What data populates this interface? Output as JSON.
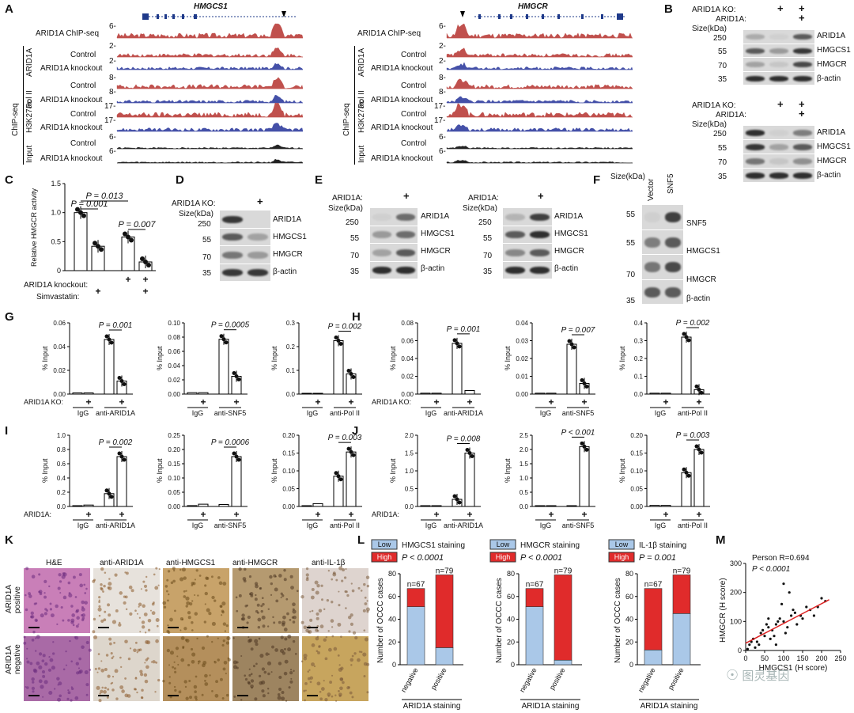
{
  "panel_letters": [
    "A",
    "B",
    "C",
    "D",
    "E",
    "F",
    "G",
    "H",
    "I",
    "J",
    "K",
    "L",
    "M"
  ],
  "panelA": {
    "genes": [
      "HMGCS1",
      "HMGCR"
    ],
    "track_rows": [
      "ARID1A ChIP-seq",
      "Control",
      "ARID1A knockout",
      "Control",
      "ARID1A knockout",
      "Control",
      "ARID1A knockout",
      "Control",
      "ARID1A knockout"
    ],
    "group_labels": [
      "ARID1A",
      "Pol II",
      "H3K27ac",
      "Input",
      "ChIP-seq"
    ],
    "scales_left": [
      "6-",
      "2-",
      "2-",
      "8-",
      "8-",
      "17-",
      "17-",
      "6-",
      "6-"
    ],
    "scales_right": [
      "6-",
      "2-",
      "2-",
      "8-",
      "8-",
      "17-",
      "17-",
      "6-",
      "6-"
    ]
  },
  "panelB": {
    "row_labels": [
      "ARID1A KO:",
      "ARID1A:",
      "Size(kDa)"
    ],
    "sizes": [
      "250",
      "55",
      "70",
      "35"
    ],
    "proteins": [
      "ARID1A",
      "HMGCS1",
      "HMGCR",
      "β-actin"
    ]
  },
  "panelC": {
    "ylabel": "Relative HMGCR activity",
    "yticks": [
      "0",
      "0.5",
      "1.0",
      "1.5"
    ],
    "pvalues": [
      "P = 0.013",
      "P = 0.001",
      "P = 0.007"
    ],
    "row1": "ARID1A knockout:",
    "row2": "Simvastatin:",
    "plus": "+"
  },
  "panelD": {
    "row": "ARID1A KO:",
    "size": "Size(kDa)",
    "sizes": [
      "250",
      "55",
      "70",
      "35"
    ],
    "proteins": [
      "ARID1A",
      "HMGCS1",
      "HMGCR",
      "β-actin"
    ]
  },
  "panelE": {
    "row": "ARID1A:",
    "size": "Size(kDa)",
    "sizes": [
      "250",
      "55",
      "70",
      "35"
    ],
    "proteins": [
      "ARID1A",
      "HMGCS1",
      "HMGCR",
      "β-actin"
    ]
  },
  "panelF": {
    "size": "Size(kDa)",
    "lanes": [
      "Vector",
      "SNF5"
    ],
    "sizes": [
      "55",
      "55",
      "70",
      "35"
    ],
    "proteins": [
      "SNF5",
      "HMGCS1",
      "HMGCR",
      "β-actin"
    ]
  },
  "barpanels": {
    "ylabel": "% Input",
    "ko_label": "ARID1A KO:",
    "oe_label": "ARID1A:",
    "igg": "IgG",
    "G": [
      {
        "p": "P = 0.001",
        "ab": "anti-ARID1A",
        "yticks": [
          "0.00",
          "0.02",
          "0.04",
          "0.06"
        ]
      },
      {
        "p": "P = 0.0005",
        "ab": "anti-SNF5",
        "yticks": [
          "0.00",
          "0.02",
          "0.04",
          "0.06",
          "0.08",
          "0.10"
        ]
      },
      {
        "p": "P = 0.002",
        "ab": "anti-Pol II",
        "yticks": [
          "0.0",
          "0.1",
          "0.2",
          "0.3"
        ]
      }
    ],
    "H": [
      {
        "p": "P = 0.001",
        "ab": "anti-ARID1A",
        "yticks": [
          "0.00",
          "0.02",
          "0.04",
          "0.06",
          "0.08"
        ]
      },
      {
        "p": "P = 0.007",
        "ab": "anti-SNF5",
        "yticks": [
          "0.00",
          "0.01",
          "0.02",
          "0.03",
          "0.04"
        ]
      },
      {
        "p": "P = 0.002",
        "ab": "anti-Pol II",
        "yticks": [
          "0.0",
          "0.1",
          "0.2",
          "0.3",
          "0.4"
        ]
      }
    ],
    "I": [
      {
        "p": "P = 0.002",
        "ab": "anti-ARID1A",
        "yticks": [
          "0.0",
          "0.2",
          "0.4",
          "0.6",
          "0.8",
          "1.0"
        ]
      },
      {
        "p": "P = 0.0006",
        "ab": "anti-SNF5",
        "yticks": [
          "0.00",
          "0.05",
          "0.10",
          "0.15",
          "0.20",
          "0.25"
        ]
      },
      {
        "p": "P = 0.003",
        "ab": "anti-Pol II",
        "yticks": [
          "0.00",
          "0.05",
          "0.10",
          "0.15",
          "0.20"
        ]
      }
    ],
    "J": [
      {
        "p": "P = 0.008",
        "ab": "anti-ARID1A",
        "yticks": [
          "0.0",
          "0.5",
          "1.0",
          "1.5",
          "2.0"
        ]
      },
      {
        "p": "P < 0.001",
        "ab": "anti-SNF5",
        "yticks": [
          "0.0",
          "0.5",
          "1.0",
          "1.5",
          "2.0",
          "2.5"
        ]
      },
      {
        "p": "P = 0.003",
        "ab": "anti-Pol II",
        "yticks": [
          "0.00",
          "0.05",
          "0.10",
          "0.15",
          "0.20"
        ]
      }
    ]
  },
  "panelK": {
    "columns": [
      "H&E",
      "anti-ARID1A",
      "anti-HMGCS1",
      "anti-HMGCR",
      "anti-IL-1β"
    ],
    "rows": [
      "ARID1A positive",
      "ARID1A negative"
    ]
  },
  "panelL": {
    "legend_low": "Low",
    "legend_high": "High",
    "ylabel": "Number of OCCC cases",
    "xlabel": "ARID1A staining",
    "cats": [
      "negative",
      "positive"
    ],
    "ns": [
      "n=67",
      "n=79"
    ],
    "yticks": [
      "0",
      "20",
      "40",
      "60",
      "80"
    ],
    "charts": [
      {
        "title": "HMGCS1 staining",
        "p": "P < 0.0001"
      },
      {
        "title": "HMGCR staining",
        "p": "P < 0.0001"
      },
      {
        "title": "IL-1β staining",
        "p": "P = 0.001"
      }
    ]
  },
  "panelM": {
    "r": "Person R=0.694",
    "p": "P < 0.0001",
    "ylabel": "HMGCR (H score)",
    "xlabel": "HMGCS1 (H score)",
    "ticks": [
      "0",
      "50",
      "100",
      "150",
      "200",
      "250"
    ],
    "yticks": [
      "0",
      "100",
      "200",
      "300"
    ]
  },
  "watermark": "图灵基因",
  "colors": {
    "low": "#aac8e8",
    "high": "#e02b2b",
    "red_track": "#c0504d",
    "blue_track": "#4450a8",
    "regression": "#d22"
  },
  "chart_data": [
    {
      "type": "bar",
      "panel": "C",
      "categories": [
        "Control",
        "Simvastatin",
        "ARID1A knockout",
        "ARID1A knockout + Simvastatin"
      ],
      "values": [
        1.0,
        0.42,
        0.58,
        0.15
      ],
      "ylabel": "Relative HMGCR activity",
      "ylim": [
        0,
        1.5
      ]
    },
    {
      "type": "bar",
      "panel": "G1",
      "categories": [
        "IgG",
        "IgG KO",
        "anti-ARID1A",
        "anti-ARID1A KO"
      ],
      "values": [
        0.001,
        0.001,
        0.046,
        0.011
      ],
      "ylim": [
        0,
        0.06
      ]
    },
    {
      "type": "bar",
      "panel": "G2",
      "categories": [
        "IgG",
        "IgG KO",
        "anti-SNF5",
        "anti-SNF5 KO"
      ],
      "values": [
        0.002,
        0.002,
        0.077,
        0.025
      ],
      "ylim": [
        0,
        0.1
      ]
    },
    {
      "type": "bar",
      "panel": "G3",
      "categories": [
        "IgG",
        "IgG KO",
        "anti-Pol II",
        "anti-Pol II KO"
      ],
      "values": [
        0.003,
        0.003,
        0.225,
        0.085
      ],
      "ylim": [
        0,
        0.3
      ]
    },
    {
      "type": "bar",
      "panel": "H1",
      "categories": [
        "IgG",
        "IgG KO",
        "anti-ARID1A",
        "anti-ARID1A KO"
      ],
      "values": [
        0.001,
        0.001,
        0.057,
        0.004
      ],
      "ylim": [
        0,
        0.08
      ]
    },
    {
      "type": "bar",
      "panel": "H2",
      "categories": [
        "IgG",
        "IgG KO",
        "anti-SNF5",
        "anti-SNF5 KO"
      ],
      "values": [
        0.0005,
        0.0005,
        0.028,
        0.006
      ],
      "ylim": [
        0,
        0.04
      ]
    },
    {
      "type": "bar",
      "panel": "H3",
      "categories": [
        "IgG",
        "IgG KO",
        "anti-Pol II",
        "anti-Pol II KO"
      ],
      "values": [
        0.005,
        0.005,
        0.32,
        0.025
      ],
      "ylim": [
        0,
        0.4
      ]
    },
    {
      "type": "bar",
      "panel": "I1",
      "categories": [
        "IgG",
        "IgG OE",
        "anti-ARID1A",
        "anti-ARID1A OE"
      ],
      "values": [
        0.01,
        0.02,
        0.18,
        0.7
      ],
      "ylim": [
        0,
        1.0
      ]
    },
    {
      "type": "bar",
      "panel": "I2",
      "categories": [
        "IgG",
        "IgG OE",
        "anti-SNF5",
        "anti-SNF5 OE"
      ],
      "values": [
        0.003,
        0.008,
        0.007,
        0.175
      ],
      "ylim": [
        0,
        0.25
      ]
    },
    {
      "type": "bar",
      "panel": "I3",
      "categories": [
        "IgG",
        "IgG OE",
        "anti-Pol II",
        "anti-Pol II OE"
      ],
      "values": [
        0.002,
        0.008,
        0.085,
        0.153
      ],
      "ylim": [
        0,
        0.2
      ]
    },
    {
      "type": "bar",
      "panel": "J1",
      "categories": [
        "IgG",
        "IgG OE",
        "anti-ARID1A",
        "anti-ARID1A OE"
      ],
      "values": [
        0.01,
        0.01,
        0.2,
        1.5
      ],
      "ylim": [
        0,
        2.0
      ]
    },
    {
      "type": "bar",
      "panel": "J2",
      "categories": [
        "IgG",
        "IgG OE",
        "anti-SNF5",
        "anti-SNF5 OE"
      ],
      "values": [
        0.01,
        0.01,
        0.01,
        2.1
      ],
      "ylim": [
        0,
        2.5
      ]
    },
    {
      "type": "bar",
      "panel": "J3",
      "categories": [
        "IgG",
        "IgG OE",
        "anti-Pol II",
        "anti-Pol II OE"
      ],
      "values": [
        0.003,
        0.003,
        0.095,
        0.16
      ],
      "ylim": [
        0,
        0.2
      ]
    },
    {
      "type": "bar",
      "panel": "L1",
      "categories": [
        "negative",
        "positive"
      ],
      "series": [
        {
          "name": "Low",
          "values": [
            51,
            15
          ]
        },
        {
          "name": "High",
          "values": [
            16,
            64
          ]
        }
      ],
      "ylim": [
        0,
        80
      ]
    },
    {
      "type": "bar",
      "panel": "L2",
      "categories": [
        "negative",
        "positive"
      ],
      "series": [
        {
          "name": "Low",
          "values": [
            51,
            4
          ]
        },
        {
          "name": "High",
          "values": [
            16,
            75
          ]
        }
      ],
      "ylim": [
        0,
        80
      ]
    },
    {
      "type": "bar",
      "panel": "L3",
      "categories": [
        "negative",
        "positive"
      ],
      "series": [
        {
          "name": "Low",
          "values": [
            13,
            45
          ]
        },
        {
          "name": "High",
          "values": [
            54,
            34
          ]
        }
      ],
      "ylim": [
        0,
        80
      ]
    },
    {
      "type": "scatter",
      "panel": "M",
      "x": [
        10,
        20,
        30,
        40,
        50,
        60,
        70,
        80,
        90,
        100,
        110,
        120,
        130,
        150,
        170,
        190,
        210,
        25,
        45,
        65,
        85,
        105,
        125,
        145,
        95,
        75,
        55,
        35,
        160,
        180,
        200,
        115,
        135,
        5,
        15,
        100,
        80,
        60
      ],
      "y": [
        20,
        40,
        30,
        60,
        50,
        80,
        70,
        90,
        110,
        100,
        80,
        120,
        130,
        110,
        140,
        150,
        170,
        10,
        70,
        40,
        100,
        60,
        140,
        120,
        160,
        50,
        90,
        20,
        150,
        120,
        180,
        200,
        90,
        5,
        30,
        230,
        20,
        110
      ],
      "xlim": [
        0,
        250
      ],
      "ylim": [
        0,
        300
      ]
    }
  ]
}
